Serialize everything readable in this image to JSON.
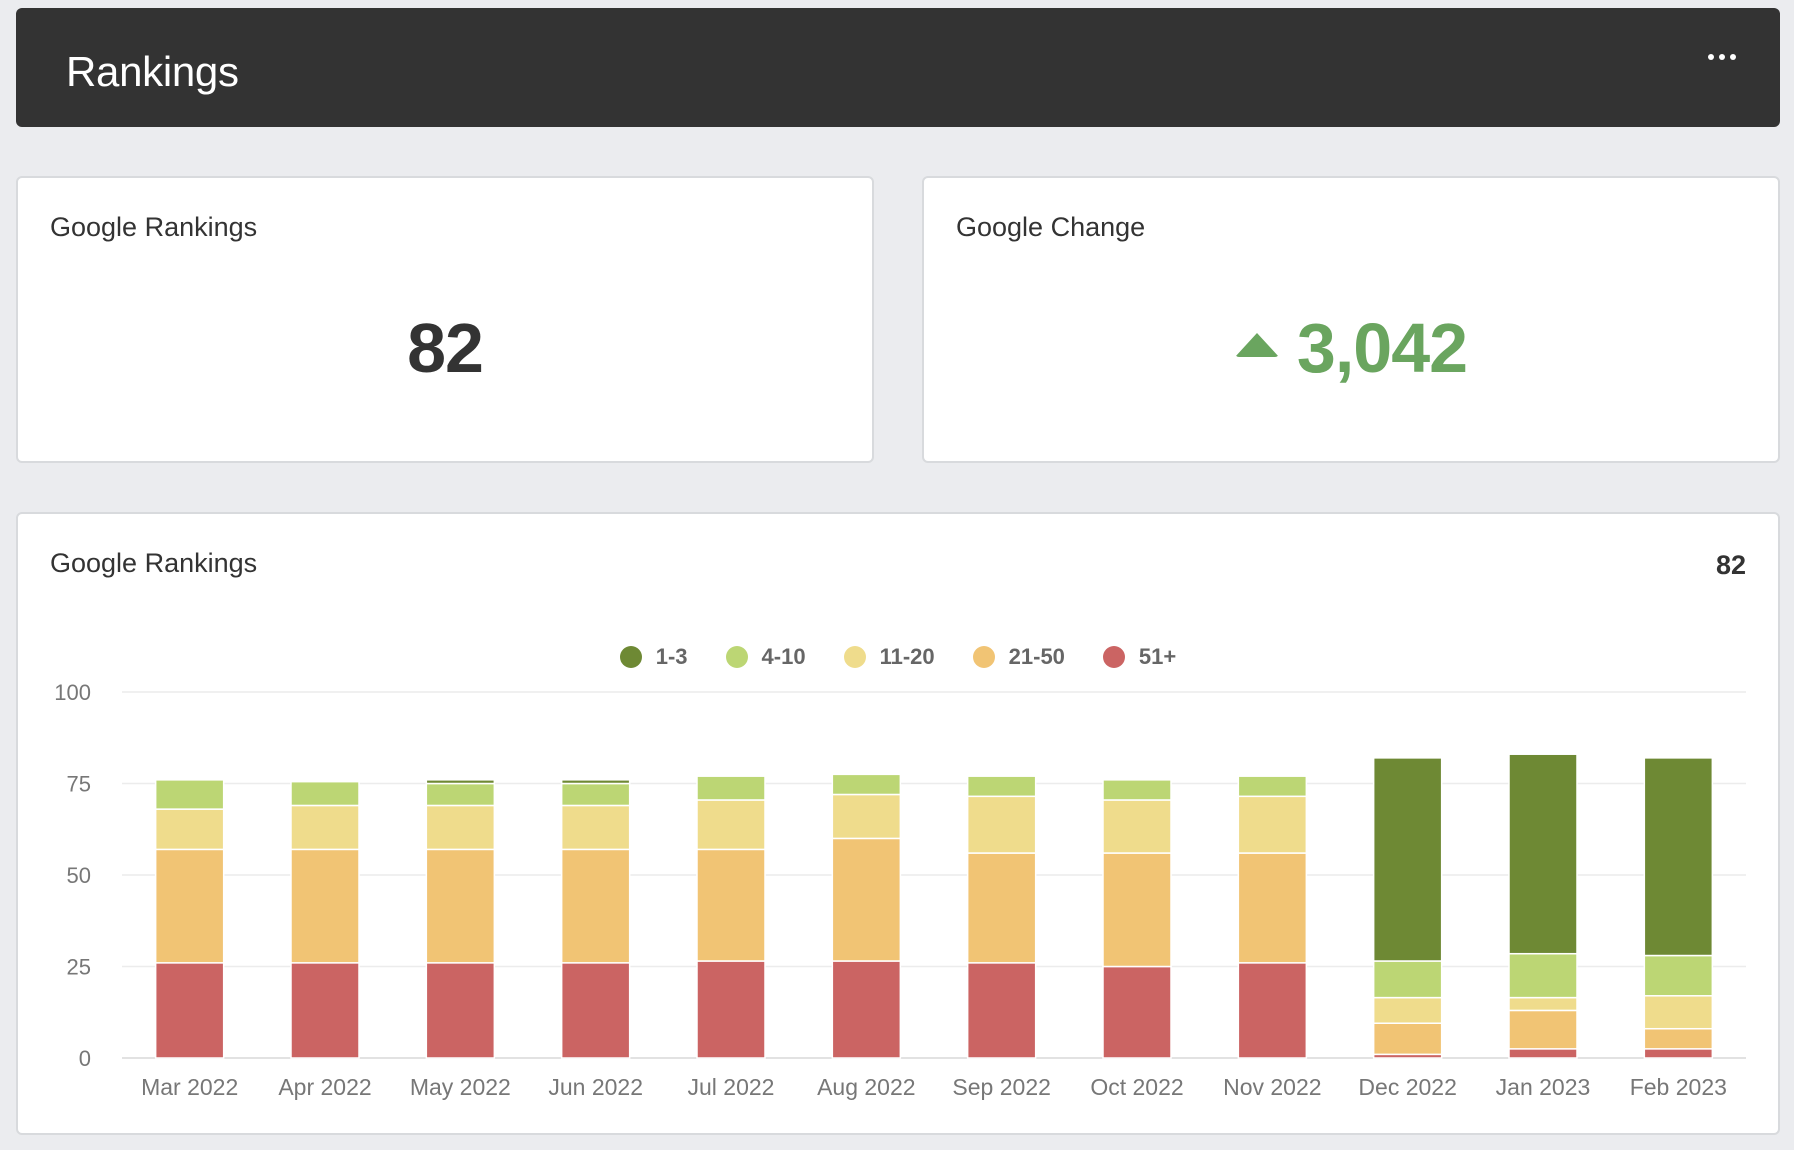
{
  "header": {
    "title": "Rankings"
  },
  "google_rankings_card": {
    "title": "Google Rankings",
    "value": "82"
  },
  "google_change_card": {
    "title": "Google Change",
    "value": "3,042",
    "color": "#6aa55f"
  },
  "chart_card": {
    "title": "Google Rankings",
    "total": "82"
  },
  "chart_data": {
    "type": "bar",
    "stacked": true,
    "title": "Google Rankings",
    "xlabel": "",
    "ylabel": "",
    "ylim": [
      0,
      100
    ],
    "yticks": [
      0,
      25,
      50,
      75,
      100
    ],
    "grid": true,
    "legend_position": "top-center",
    "categories": [
      "Mar 2022",
      "Apr 2022",
      "May 2022",
      "Jun 2022",
      "Jul 2022",
      "Aug 2022",
      "Sep 2022",
      "Oct 2022",
      "Nov 2022",
      "Dec 2022",
      "Jan 2023",
      "Feb 2023"
    ],
    "series": [
      {
        "name": "51+",
        "color": "#cb6463",
        "values": [
          26,
          26,
          26,
          26,
          26.5,
          26.5,
          26,
          25,
          26,
          1,
          2.5,
          2.5
        ]
      },
      {
        "name": "21-50",
        "color": "#f1c474",
        "values": [
          31,
          31,
          31,
          31,
          30.5,
          33.5,
          30,
          31,
          30,
          8.5,
          10.5,
          5.5
        ]
      },
      {
        "name": "11-20",
        "color": "#efdc8c",
        "values": [
          11,
          12,
          12,
          12,
          13.5,
          12,
          15.5,
          14.5,
          15.5,
          7,
          3.5,
          9
        ]
      },
      {
        "name": "4-10",
        "color": "#bcd674",
        "values": [
          8,
          6.5,
          6,
          6,
          6.5,
          5.5,
          5.5,
          5.5,
          5.5,
          10,
          12,
          11
        ]
      },
      {
        "name": "1-3",
        "color": "#6e8934",
        "values": [
          0,
          0,
          1,
          1,
          0,
          0,
          0,
          0,
          0,
          55.5,
          54.5,
          54
        ]
      }
    ],
    "legend_order": [
      "1-3",
      "4-10",
      "11-20",
      "21-50",
      "51+"
    ]
  }
}
